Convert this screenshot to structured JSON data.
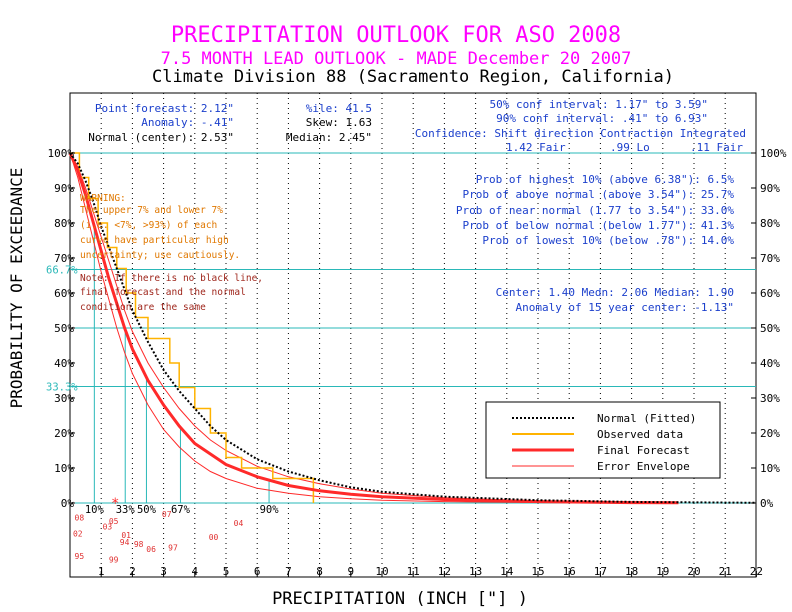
{
  "titles": {
    "main": "PRECIPITATION OUTLOOK FOR ASO 2008",
    "sub": "7.5 MONTH LEAD OUTLOOK  - MADE December 20 2007",
    "division": "Climate Division 88 (Sacramento Region, California)"
  },
  "stats_left": [
    "Point forecast: 2.12\"",
    "Anomaly: -.41\"",
    "Normal (center): 2.53\""
  ],
  "stats_mid": [
    "%ile:  41.5",
    "Skew:  1.63",
    "Median: 2.45\""
  ],
  "stats_right": [
    "50% conf interval: 1.17\" to 3.59\"",
    "90% conf interval: .41\" to 6.93\""
  ],
  "confidence_header": "Confidence: Shift direction   Contraction   Integrated",
  "confidence_values": [
    "1.42 Fair",
    ".99 Lo",
    ".11 Fair"
  ],
  "probabilities": [
    "Prob of highest 10% (above 6.38\"): 6.5%",
    "Prob of above normal (above 3.54\"): 25.7%",
    "Prob of near normal (1.77 to 3.54\"): 33.0%",
    "Prob of below normal (below 1.77\"): 41.3%",
    "Prob of lowest 10% (below .78\"): 14.0%"
  ],
  "center_stats": [
    "Center: 1.40 Medn: 2.06 Median: 1.90",
    "Anomaly of 15 year center: -1.13\""
  ],
  "warning": [
    "WARNING:",
    "The upper 7% and lower 7%",
    "(i.e. <7%, >93%) of each",
    "curve have particular high",
    "uncertainty; use cautiously."
  ],
  "note": [
    "Note: If there is no black line,",
    "final forecast and the normal",
    "condition are the same"
  ],
  "colors": {
    "title": "#ff00ff",
    "division": "#000000",
    "stats": "#1b3fcc",
    "cyan": "#2ab8b8",
    "observed": "#ffb300",
    "forecast": "#ff2a2a",
    "envelope": "#ff2a2a",
    "warning": "#e07800",
    "note": "#a0281e",
    "years": "#e03030"
  },
  "chart_data": {
    "type": "line",
    "xlabel": "PRECIPITATION (INCH [\"] )",
    "ylabel": "PROBABILITY OF EXCEEDANCE",
    "xlim": [
      0,
      22
    ],
    "ylim": [
      0,
      100
    ],
    "x_ticks": [
      "1",
      "2",
      "3",
      "4",
      "5",
      "6",
      "7",
      "8",
      "9",
      "10",
      "11",
      "12",
      "13",
      "14",
      "15",
      "16",
      "17",
      "18",
      "19",
      "20",
      "21",
      "22"
    ],
    "y_ticks_left": [
      "0%",
      "10%",
      "20%",
      "30%",
      "40%",
      "50%",
      "60%",
      "70%",
      "80%",
      "90%",
      "100%"
    ],
    "y_ticks_right": [
      "0%",
      "10%",
      "20%",
      "30%",
      "40%",
      "50%",
      "60%",
      "70%",
      "80%",
      "90%",
      "100%"
    ],
    "reference_lines": [
      {
        "label": "66.7%",
        "y": 66.7
      },
      {
        "label": "33.3%",
        "y": 33.3
      }
    ],
    "quantile_markers": [
      {
        "label": "10%",
        "x": 0.78
      },
      {
        "label": "33%",
        "x": 1.77
      },
      {
        "label": "50%",
        "x": 2.45
      },
      {
        "label": "67%",
        "x": 3.54
      },
      {
        "label": "90%",
        "x": 6.38
      }
    ],
    "legend": [
      {
        "name": "Normal (Fitted)",
        "style": "dotted",
        "color": "#000000"
      },
      {
        "name": "Observed data",
        "style": "solid",
        "color": "#ffb300"
      },
      {
        "name": "Final Forecast",
        "style": "solid",
        "color": "#ff2a2a"
      },
      {
        "name": "Error Envelope",
        "style": "thin",
        "color": "#ff2a2a"
      }
    ],
    "series": [
      {
        "name": "Normal (Fitted)",
        "x": [
          0,
          0.25,
          0.5,
          0.75,
          1,
          1.25,
          1.5,
          1.75,
          2,
          2.5,
          3,
          3.5,
          4,
          4.5,
          5,
          6,
          7,
          8,
          9,
          10,
          12,
          15,
          18,
          22
        ],
        "values": [
          100,
          97,
          92,
          86,
          79,
          73,
          67,
          61,
          55,
          46,
          38,
          32,
          27,
          22,
          18,
          12.5,
          9,
          6.5,
          4.5,
          3.2,
          1.8,
          0.8,
          0.3,
          0.05
        ]
      },
      {
        "name": "Observed data",
        "x": [
          0,
          0.3,
          0.3,
          0.6,
          0.6,
          0.9,
          0.9,
          1.2,
          1.2,
          1.5,
          1.5,
          1.8,
          1.8,
          2.1,
          2.1,
          2.5,
          2.5,
          3.2,
          3.2,
          3.5,
          3.5,
          4,
          4,
          4.5,
          4.5,
          5,
          5,
          5.5,
          5.5,
          6.5,
          6.5,
          7.8,
          7.8
        ],
        "values": [
          100,
          100,
          93,
          93,
          87,
          87,
          80,
          80,
          73,
          73,
          67,
          67,
          60,
          60,
          53,
          53,
          47,
          47,
          40,
          40,
          33,
          33,
          27,
          27,
          20,
          20,
          13,
          13,
          10,
          10,
          7,
          7,
          0
        ]
      },
      {
        "name": "Final Forecast",
        "x": [
          0,
          0.25,
          0.5,
          0.75,
          1,
          1.25,
          1.5,
          1.75,
          2,
          2.5,
          3,
          3.5,
          4,
          4.5,
          5,
          6,
          7,
          8,
          9,
          10,
          12,
          15,
          18,
          19.5
        ],
        "values": [
          100,
          95,
          88,
          80,
          72,
          64,
          57,
          50,
          44,
          35,
          28,
          22,
          17,
          14,
          11,
          7.5,
          5,
          3.5,
          2.5,
          1.8,
          1,
          0.4,
          0.1,
          0.05
        ]
      },
      {
        "name": "Error Envelope upper",
        "x": [
          0,
          0.25,
          0.5,
          0.75,
          1,
          1.25,
          1.5,
          1.75,
          2,
          2.5,
          3,
          3.5,
          4,
          4.5,
          5,
          6,
          7,
          8,
          9,
          10,
          12,
          15,
          18,
          19.5
        ],
        "values": [
          100,
          96,
          90,
          83,
          76,
          69,
          62,
          55,
          49,
          40,
          33,
          27,
          22,
          18,
          15,
          10.5,
          7.5,
          5.5,
          4,
          2.8,
          1.5,
          0.6,
          0.2,
          0.05
        ]
      },
      {
        "name": "Error Envelope lower",
        "x": [
          0,
          0.25,
          0.5,
          0.75,
          1,
          1.25,
          1.5,
          1.75,
          2,
          2.5,
          3,
          3.5,
          4,
          4.5,
          5,
          6,
          7,
          8,
          9,
          10,
          12,
          15,
          18,
          19.5
        ],
        "values": [
          100,
          93,
          84,
          75,
          66,
          58,
          50,
          43,
          37,
          28,
          21,
          16,
          12,
          9,
          7,
          4.2,
          2.8,
          1.8,
          1.2,
          0.8,
          0.4,
          0.15,
          0.05,
          0.02
        ]
      }
    ],
    "year_labels": [
      {
        "label": "08",
        "x": 0.3,
        "y": -5
      },
      {
        "label": "02",
        "x": 0.25,
        "y": -9.5
      },
      {
        "label": "95",
        "x": 0.3,
        "y": -16
      },
      {
        "label": "05",
        "x": 1.4,
        "y": -6
      },
      {
        "label": "03",
        "x": 1.2,
        "y": -7.5
      },
      {
        "label": "01",
        "x": 1.8,
        "y": -10
      },
      {
        "label": "94",
        "x": 1.75,
        "y": -12
      },
      {
        "label": "99",
        "x": 1.4,
        "y": -17
      },
      {
        "label": "98",
        "x": 2.2,
        "y": -12.5
      },
      {
        "label": "06",
        "x": 2.6,
        "y": -14
      },
      {
        "label": "97",
        "x": 3.3,
        "y": -13.5
      },
      {
        "label": "07",
        "x": 3.1,
        "y": -4
      },
      {
        "label": "04",
        "x": 5.4,
        "y": -6.5
      },
      {
        "label": "00",
        "x": 4.6,
        "y": -10.5
      }
    ]
  }
}
